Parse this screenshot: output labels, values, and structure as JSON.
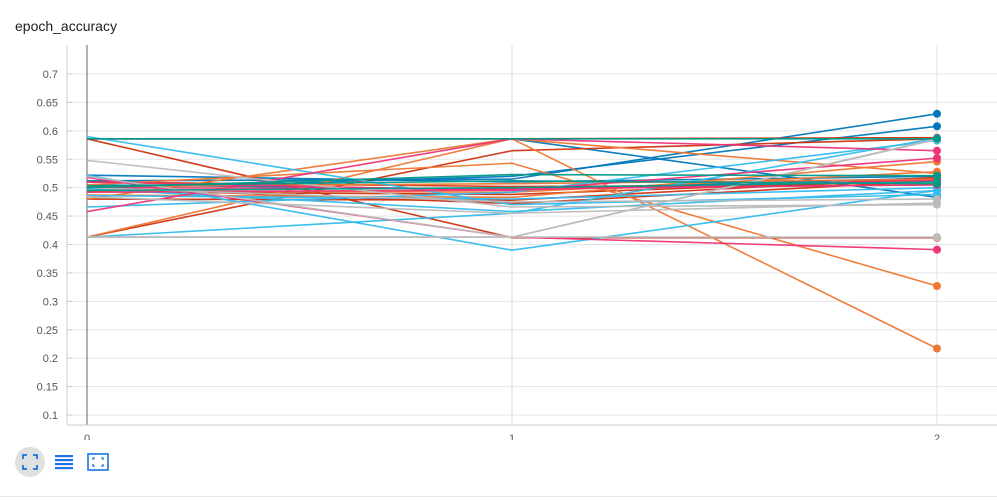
{
  "card": {
    "title": "epoch_accuracy"
  },
  "toolbar": {
    "buttons": [
      {
        "name": "fit-domain",
        "icon": "fullscreen-icon",
        "active": true
      },
      {
        "name": "toggle-log",
        "icon": "lines-icon",
        "active": false
      },
      {
        "name": "fit-data",
        "icon": "fit-screen-icon",
        "active": false
      }
    ]
  },
  "chart_data": {
    "type": "line",
    "title": "epoch_accuracy",
    "xlabel": "",
    "ylabel": "",
    "x": [
      0,
      1,
      2
    ],
    "xlim": [
      0,
      2
    ],
    "ylim": [
      0.09,
      0.74
    ],
    "x_ticks": [
      "0",
      "1",
      "2"
    ],
    "y_ticks": [
      "0.1",
      "0.15",
      "0.2",
      "0.25",
      "0.3",
      "0.35",
      "0.4",
      "0.45",
      "0.5",
      "0.55",
      "0.6",
      "0.65",
      "0.7"
    ],
    "grid": true,
    "series": [
      {
        "color": "#0077bb",
        "values": [
          0.512,
          0.515,
          0.63
        ]
      },
      {
        "color": "#0077bb",
        "values": [
          0.498,
          0.52,
          0.608
        ]
      },
      {
        "color": "#0077bb",
        "values": [
          0.586,
          0.586,
          0.483
        ]
      },
      {
        "color": "#0077bb",
        "values": [
          0.522,
          0.51,
          0.52
        ]
      },
      {
        "color": "#0077bb",
        "values": [
          0.505,
          0.497,
          0.517
        ]
      },
      {
        "color": "#cc3311",
        "values": [
          0.586,
          0.412,
          0.412
        ]
      },
      {
        "color": "#cc3311",
        "values": [
          0.413,
          0.565,
          0.586
        ]
      },
      {
        "color": "#cc3311",
        "values": [
          0.586,
          0.586,
          0.588
        ]
      },
      {
        "color": "#cc3311",
        "values": [
          0.493,
          0.488,
          0.515
        ]
      },
      {
        "color": "#cc3311",
        "values": [
          0.48,
          0.478,
          0.518
        ]
      },
      {
        "color": "#cc3311",
        "values": [
          0.5,
          0.472,
          0.512
        ]
      },
      {
        "color": "#cc3311",
        "values": [
          0.51,
          0.502,
          0.505
        ]
      },
      {
        "color": "#ee7733",
        "values": [
          0.413,
          0.586,
          0.217
        ]
      },
      {
        "color": "#ee7733",
        "values": [
          0.505,
          0.543,
          0.327
        ]
      },
      {
        "color": "#ee7733",
        "values": [
          0.487,
          0.483,
          0.546
        ]
      },
      {
        "color": "#ee7733",
        "values": [
          0.48,
          0.586,
          0.525
        ]
      },
      {
        "color": "#ee7733",
        "values": [
          0.495,
          0.492,
          0.528
        ]
      },
      {
        "color": "#ee7733",
        "values": [
          0.502,
          0.507,
          0.515
        ]
      },
      {
        "color": "#33bbee",
        "values": [
          0.413,
          0.455,
          0.587
        ]
      },
      {
        "color": "#33bbee",
        "values": [
          0.522,
          0.39,
          0.495
        ]
      },
      {
        "color": "#33bbee",
        "values": [
          0.466,
          0.492,
          0.583
        ]
      },
      {
        "color": "#33bbee",
        "values": [
          0.486,
          0.48,
          0.5
        ]
      },
      {
        "color": "#33bbee",
        "values": [
          0.59,
          0.47,
          0.488
        ]
      },
      {
        "color": "#33bbee",
        "values": [
          0.498,
          0.458,
          0.495
        ]
      },
      {
        "color": "#ee3377",
        "values": [
          0.458,
          0.586,
          0.565
        ]
      },
      {
        "color": "#ee3377",
        "values": [
          0.518,
          0.413,
          0.391
        ]
      },
      {
        "color": "#ee3377",
        "values": [
          0.51,
          0.495,
          0.552
        ]
      },
      {
        "color": "#ee3377",
        "values": [
          0.5,
          0.498,
          0.505
        ]
      },
      {
        "color": "#ee3377",
        "values": [
          0.492,
          0.496,
          0.513
        ]
      },
      {
        "color": "#bbbbbb",
        "values": [
          0.548,
          0.466,
          0.47
        ]
      },
      {
        "color": "#bbbbbb",
        "values": [
          0.413,
          0.413,
          0.413
        ]
      },
      {
        "color": "#bbbbbb",
        "values": [
          0.52,
          0.413,
          0.586
        ]
      },
      {
        "color": "#bbbbbb",
        "values": [
          0.484,
          0.455,
          0.473
        ]
      },
      {
        "color": "#bbbbbb",
        "values": [
          0.5,
          0.475,
          0.48
        ]
      },
      {
        "color": "#bbbbbb",
        "values": [
          0.413,
          0.413,
          0.585
        ]
      },
      {
        "color": "#009988",
        "values": [
          0.586,
          0.586,
          0.586
        ]
      },
      {
        "color": "#009988",
        "values": [
          0.5,
          0.523,
          0.521
        ]
      },
      {
        "color": "#009988",
        "values": [
          0.495,
          0.5,
          0.51
        ]
      },
      {
        "color": "#009988",
        "values": [
          0.503,
          0.512,
          0.507
        ]
      }
    ]
  }
}
